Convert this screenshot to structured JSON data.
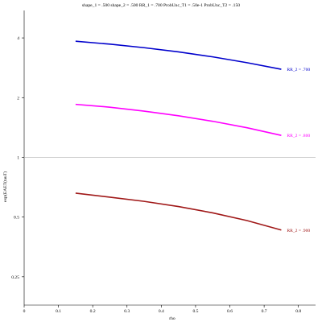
{
  "chart_data": {
    "type": "line",
    "title": "shape_1 = .500  shape_2 = .500  RR_1 = .700  ProbUnc_T1 = .50e-1  ProbUnc_T2 = .150",
    "xlabel": "rho",
    "ylabel": "exp(EAET(tauT)",
    "xlim": [
      0,
      0.85
    ],
    "ylim": [
      0.18,
      5.5
    ],
    "yscale": "log",
    "xticks": [
      0,
      0.1,
      0.2,
      0.3,
      0.4,
      0.5,
      0.6,
      0.7,
      0.8
    ],
    "xtick_labels": [
      "0",
      "0.1",
      "0.2",
      "0.3",
      "0.4",
      "0.5",
      "0.6",
      "0.7",
      "0.8"
    ],
    "yticks": [
      0.25,
      0.5,
      1,
      2,
      4
    ],
    "ytick_labels": [
      "0.25",
      "0.5",
      "1",
      "2",
      "4"
    ],
    "reference_line_y": 1,
    "series": [
      {
        "name": "RR_2 = .700",
        "color": "#0000cc",
        "x": [
          0.15,
          0.25,
          0.35,
          0.45,
          0.55,
          0.65,
          0.75
        ],
        "values": [
          3.85,
          3.72,
          3.57,
          3.4,
          3.21,
          3.0,
          2.78
        ]
      },
      {
        "name": "RR_2 = .800",
        "color": "#ff00ff",
        "x": [
          0.15,
          0.25,
          0.35,
          0.45,
          0.55,
          0.65,
          0.75
        ],
        "values": [
          1.85,
          1.79,
          1.71,
          1.62,
          1.52,
          1.41,
          1.29
        ]
      },
      {
        "name": "RR_2 = .900",
        "color": "#a01818",
        "x": [
          0.15,
          0.25,
          0.35,
          0.45,
          0.55,
          0.65,
          0.75
        ],
        "values": [
          0.66,
          0.63,
          0.6,
          0.565,
          0.525,
          0.48,
          0.43
        ]
      }
    ]
  }
}
